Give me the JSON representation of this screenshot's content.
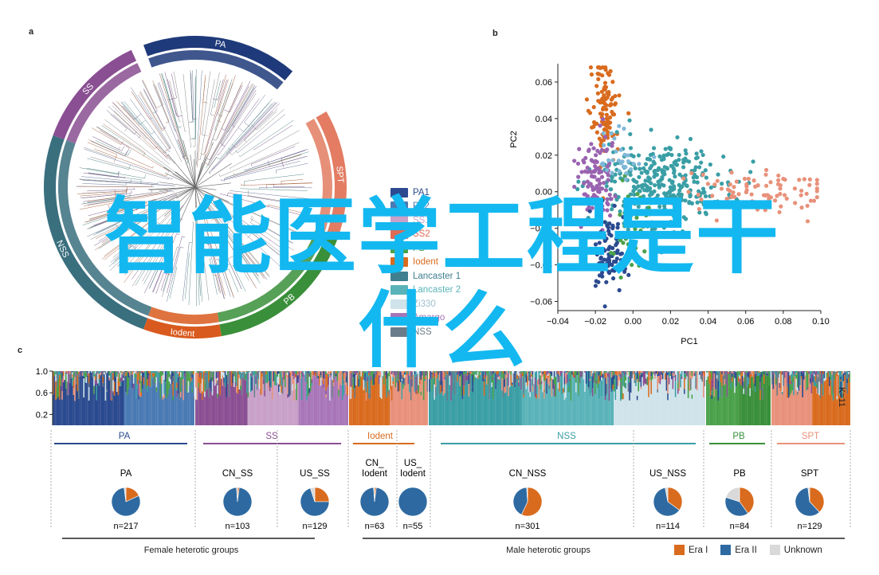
{
  "panels": {
    "a": {
      "label": "a",
      "ring_labels": [
        {
          "text": "NSS",
          "color": "#3a6f7e"
        },
        {
          "text": "SS",
          "color": "#8a4f92"
        },
        {
          "text": "PA",
          "color": "#1f3a7a"
        },
        {
          "text": "SPT",
          "color": "#e37c62"
        },
        {
          "text": "PB",
          "color": "#3a8f3a"
        },
        {
          "text": "Iodent",
          "color": "#d95a1e"
        }
      ],
      "legend": [
        {
          "label": "PA1",
          "color": "#2b4a8f"
        },
        {
          "label": "PA2",
          "color": "#4a7ab3"
        },
        {
          "label": "SS1",
          "color": "#c8a0c8"
        },
        {
          "label": "SS2",
          "color": "#e06a55"
        },
        {
          "label": "PB",
          "color": "#4aa14a"
        },
        {
          "label": "Iodent",
          "color": "#d96b1e"
        },
        {
          "label": "Lancaster 1",
          "color": "#3f7f8f"
        },
        {
          "label": "Lancaster 2",
          "color": "#5ab3b8"
        },
        {
          "label": "Zi330",
          "color": "#cfe3ea"
        },
        {
          "label": "Amargo",
          "color": "#a876b8"
        },
        {
          "label": "NSS",
          "color": "#6a7c8a"
        }
      ]
    },
    "b": {
      "label": "b",
      "chart_data": {
        "type": "scatter",
        "xlabel": "PC1",
        "ylabel": "PC2",
        "xlim": [
          -0.04,
          0.1
        ],
        "ylim": [
          -0.065,
          0.07
        ],
        "xticks": [
          "−0.04",
          "−0.02",
          "0.00",
          "0.02",
          "0.04",
          "0.06",
          "0.08",
          "0.10"
        ],
        "yticks": [
          "0.06",
          "0.04",
          "0.02",
          "0.00",
          "−0.02",
          "−0.04",
          "−0.06"
        ],
        "series": [
          {
            "color": "#d96b1e",
            "center": [
              -0.015,
              0.045
            ],
            "spread": [
              0.004,
              0.012
            ],
            "n": 110
          },
          {
            "color": "#3a9ea5",
            "center": [
              0.015,
              0.005
            ],
            "spread": [
              0.018,
              0.012
            ],
            "n": 320
          },
          {
            "color": "#e8917a",
            "center": [
              0.065,
              0.0
            ],
            "spread": [
              0.018,
              0.006
            ],
            "n": 90
          },
          {
            "color": "#9a63b0",
            "center": [
              -0.02,
              0.005
            ],
            "spread": [
              0.005,
              0.012
            ],
            "n": 120
          },
          {
            "color": "#2b4a8f",
            "center": [
              -0.013,
              -0.035
            ],
            "spread": [
              0.005,
              0.01
            ],
            "n": 90
          },
          {
            "color": "#4aa14a",
            "center": [
              0.0,
              -0.02
            ],
            "spread": [
              0.004,
              0.012
            ],
            "n": 50
          },
          {
            "color": "#7fb8d8",
            "center": [
              -0.005,
              0.02
            ],
            "spread": [
              0.006,
              0.008
            ],
            "n": 30
          }
        ]
      }
    },
    "c": {
      "label": "c",
      "k_label": "K=11",
      "y_ticks": [
        "1.0",
        "0.6",
        "0.2"
      ],
      "groups": [
        {
          "name": "PA",
          "color": "#2b4a8f"
        },
        {
          "name": "SS",
          "color": "#8a4f92"
        },
        {
          "name": "Iodent",
          "color": "#d96b1e"
        },
        {
          "name": "NSS",
          "color": "#3a9ea5"
        },
        {
          "name": "PB",
          "color": "#3a8f3a"
        },
        {
          "name": "SPT",
          "color": "#e8917a"
        }
      ],
      "pies": [
        {
          "label": "PA",
          "n": "n=217",
          "era1": 0.18,
          "era2": 0.8
        },
        {
          "label": "CN_SS",
          "n": "n=103",
          "era1": 0.02,
          "era2": 0.97
        },
        {
          "label": "US_SS",
          "n": "n=129",
          "era1": 0.25,
          "era2": 0.7
        },
        {
          "label": "CN_ Iodent",
          "n": "n=63",
          "era1": 0.02,
          "era2": 0.97
        },
        {
          "label": "US_ Iodent",
          "n": "n=55",
          "era1": 0.0,
          "era2": 1.0
        },
        {
          "label": "CN_NSS",
          "n": "n=301",
          "era1": 0.57,
          "era2": 0.42
        },
        {
          "label": "US_NSS",
          "n": "n=114",
          "era1": 0.35,
          "era2": 0.62
        },
        {
          "label": "PB",
          "n": "n=84",
          "era1": 0.4,
          "era2": 0.4
        },
        {
          "label": "SPT",
          "n": "n=129",
          "era1": 0.38,
          "era2": 0.6
        }
      ],
      "female_label": "Female heterotic groups",
      "male_label": "Male heterotic groups",
      "pie_legend": [
        {
          "label": "Era I",
          "color": "#d96b1e"
        },
        {
          "label": "Era II",
          "color": "#2e6aa1"
        },
        {
          "label": "Unknown",
          "color": "#d9d9d9"
        }
      ]
    }
  },
  "overlay": {
    "line1": "智能医学工程是干",
    "line2": "什么"
  }
}
